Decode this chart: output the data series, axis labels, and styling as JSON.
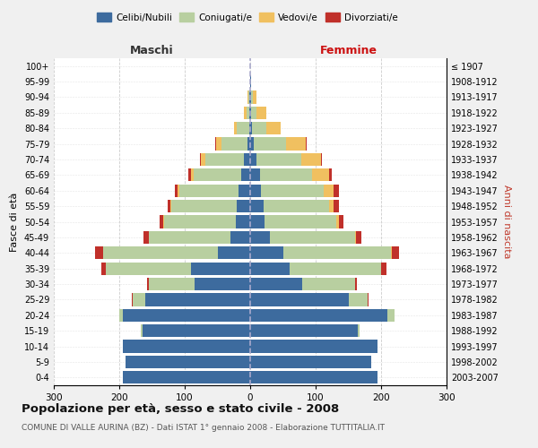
{
  "age_groups": [
    "0-4",
    "5-9",
    "10-14",
    "15-19",
    "20-24",
    "25-29",
    "30-34",
    "35-39",
    "40-44",
    "45-49",
    "50-54",
    "55-59",
    "60-64",
    "65-69",
    "70-74",
    "75-79",
    "80-84",
    "85-89",
    "90-94",
    "95-99",
    "100+"
  ],
  "birth_years": [
    "2003-2007",
    "1998-2002",
    "1993-1997",
    "1988-1992",
    "1983-1987",
    "1978-1982",
    "1973-1977",
    "1968-1972",
    "1963-1967",
    "1958-1962",
    "1953-1957",
    "1948-1952",
    "1943-1947",
    "1938-1942",
    "1933-1937",
    "1928-1932",
    "1923-1927",
    "1918-1922",
    "1913-1917",
    "1908-1912",
    "≤ 1907"
  ],
  "colors": {
    "celibi": "#3d6b9e",
    "coniugati": "#b8cfa0",
    "vedovi": "#f0c060",
    "divorziati": "#c0302a"
  },
  "males": {
    "celibi": [
      195,
      190,
      195,
      165,
      195,
      160,
      85,
      90,
      50,
      30,
      22,
      20,
      18,
      14,
      10,
      4,
      2,
      1,
      1,
      0,
      0
    ],
    "coniugati": [
      0,
      0,
      0,
      2,
      5,
      20,
      70,
      130,
      175,
      125,
      110,
      100,
      90,
      72,
      58,
      40,
      18,
      5,
      2,
      0,
      0
    ],
    "vedovi": [
      0,
      0,
      0,
      0,
      0,
      0,
      0,
      0,
      0,
      0,
      1,
      2,
      3,
      5,
      8,
      8,
      5,
      3,
      1,
      0,
      0
    ],
    "divorziati": [
      0,
      0,
      0,
      0,
      0,
      1,
      2,
      8,
      12,
      8,
      5,
      4,
      4,
      3,
      1,
      1,
      0,
      0,
      0,
      0,
      0
    ]
  },
  "females": {
    "nubili": [
      195,
      185,
      195,
      165,
      210,
      150,
      80,
      60,
      50,
      30,
      22,
      20,
      17,
      15,
      10,
      5,
      3,
      2,
      2,
      1,
      0
    ],
    "coniugate": [
      0,
      0,
      0,
      2,
      10,
      30,
      80,
      140,
      165,
      130,
      110,
      100,
      95,
      80,
      68,
      50,
      22,
      8,
      2,
      0,
      0
    ],
    "vedove": [
      0,
      0,
      0,
      0,
      0,
      0,
      0,
      0,
      1,
      2,
      4,
      8,
      15,
      25,
      30,
      30,
      22,
      15,
      5,
      1,
      0
    ],
    "divorziate": [
      0,
      0,
      0,
      0,
      0,
      1,
      3,
      8,
      12,
      8,
      6,
      7,
      8,
      5,
      2,
      1,
      0,
      0,
      0,
      0,
      0
    ]
  },
  "xlim": 300,
  "title": "Popolazione per età, sesso e stato civile - 2008",
  "subtitle": "COMUNE DI VALLE AURINA (BZ) - Dati ISTAT 1° gennaio 2008 - Elaborazione TUTTITALIA.IT",
  "ylabel_left": "Fasce di età",
  "ylabel_right": "Anni di nascita",
  "xlabel_left": "Maschi",
  "xlabel_right": "Femmine",
  "bg_color": "#f0f0f0",
  "plot_bg": "#ffffff",
  "grid_color": "#cccccc"
}
